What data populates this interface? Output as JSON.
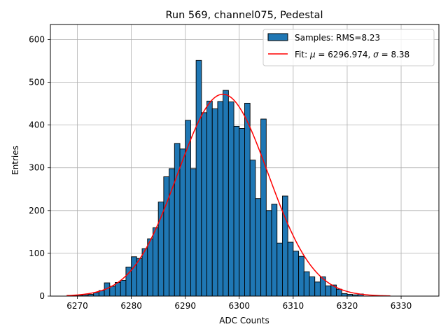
{
  "chart_data": {
    "type": "bar",
    "title": "Run 569, channel075, Pedestal",
    "xlabel": "ADC Counts",
    "ylabel": "Entries",
    "xlim": [
      6265,
      6337
    ],
    "ylim": [
      0,
      635
    ],
    "xticks": [
      6270,
      6280,
      6290,
      6300,
      6310,
      6320,
      6330
    ],
    "yticks": [
      0,
      100,
      200,
      300,
      400,
      500,
      600
    ],
    "grid": true,
    "legend_position": "top-right",
    "bin_width": 1,
    "bin_start": 6268,
    "counts": [
      0,
      1,
      2,
      3,
      4,
      8,
      13,
      31,
      23,
      32,
      37,
      68,
      92,
      88,
      111,
      134,
      160,
      220,
      279,
      298,
      357,
      344,
      411,
      298,
      551,
      429,
      456,
      438,
      455,
      481,
      454,
      397,
      392,
      451,
      318,
      228,
      414,
      200,
      215,
      124,
      234,
      126,
      105,
      93,
      57,
      45,
      33,
      45,
      24,
      26,
      16,
      6,
      4,
      3,
      5,
      0,
      0,
      0,
      0,
      0
    ],
    "fit": {
      "type": "gaussian",
      "mu": 6296.974,
      "sigma": 8.38,
      "amplitude": 472,
      "x_range": [
        6268,
        6328
      ]
    },
    "colors": {
      "bars": "#1f77b4",
      "bar_edge": "#000000",
      "fit": "#ff0000",
      "grid": "#b0b0b0"
    },
    "legend": [
      {
        "label": "Samples: RMS=8.23",
        "kind": "patch"
      },
      {
        "label_prefix": "Fit: ",
        "mu_symbol": "μ",
        "mu_text": " = 6296.974, ",
        "sigma_symbol": "σ",
        "sigma_text": " = 8.38",
        "kind": "line"
      }
    ]
  }
}
